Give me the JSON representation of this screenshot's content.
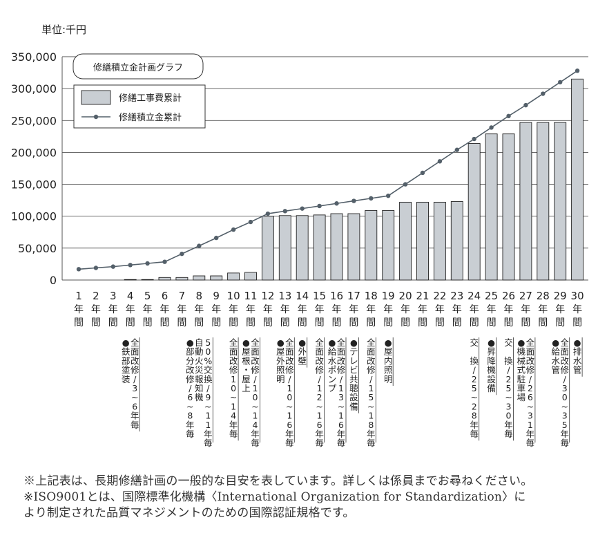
{
  "unit_label": "単位:千円",
  "chart_data": {
    "type": "bar",
    "title": "修繕積立金計画グラフ",
    "ylim": [
      0,
      350000
    ],
    "yticks": [
      "0",
      "50,000",
      "100,000",
      "150,000",
      "200,000",
      "250,000",
      "300,000",
      "350,000"
    ],
    "ytick_values": [
      0,
      50000,
      100000,
      150000,
      200000,
      250000,
      300000,
      350000
    ],
    "grid": true,
    "legend_position": "top-left",
    "categories": [
      "1",
      "2",
      "3",
      "4",
      "5",
      "6",
      "7",
      "8",
      "9",
      "10",
      "11",
      "12",
      "13",
      "14",
      "15",
      "16",
      "17",
      "18",
      "19",
      "20",
      "21",
      "22",
      "23",
      "24",
      "25",
      "26",
      "27",
      "28",
      "29",
      "30"
    ],
    "category_suffix": "年間",
    "series": [
      {
        "name": "修繕工事費累計",
        "kind": "bar",
        "color": "#c9ced3",
        "values": [
          0,
          0,
          0,
          800,
          800,
          4000,
          4000,
          6500,
          6500,
          11000,
          12000,
          100000,
          101000,
          101000,
          102000,
          104000,
          104000,
          109000,
          109000,
          122000,
          122000,
          122000,
          123000,
          214000,
          229000,
          229000,
          247000,
          247000,
          247000,
          315000
        ]
      },
      {
        "name": "修繕積立金累計",
        "kind": "line",
        "color": "#54606a",
        "values": [
          17000,
          19000,
          21000,
          23500,
          26000,
          28500,
          41000,
          53500,
          66000,
          79000,
          91000,
          104000,
          108000,
          112000,
          116000,
          120000,
          124000,
          128000,
          132000,
          150000,
          168000,
          186000,
          204000,
          221000,
          239000,
          257000,
          274000,
          292000,
          310000,
          328000
        ]
      }
    ],
    "annotations": [
      {
        "at": "4",
        "lines": [
          "●鉄部塗装",
          "全面改修/3~6年毎"
        ]
      },
      {
        "at": "8",
        "lines": [
          "●部分改修/6~8年毎",
          "自動火災報知機",
          "50%交換/9~11年毎"
        ]
      },
      {
        "at": "10",
        "lines": [
          "全面改修10~14年毎"
        ]
      },
      {
        "at": "11",
        "lines": [
          "●屋根・屋上",
          "全面改修/10~14年毎"
        ]
      },
      {
        "at": "13",
        "lines": [
          "●屋外照明",
          "全面改修/10~16年毎"
        ]
      },
      {
        "at": "14",
        "lines": [
          "●外壁"
        ]
      },
      {
        "at": "15",
        "lines": [
          "全面改修/12~16年毎"
        ]
      },
      {
        "at": "16",
        "lines": [
          "●給水ポンプ",
          "全面改修/13~16年毎"
        ]
      },
      {
        "at": "17",
        "lines": [
          "●テレビ共聴設備"
        ]
      },
      {
        "at": "18",
        "lines": [
          "全面改修/15~18年毎"
        ]
      },
      {
        "at": "19",
        "lines": [
          "●屋内照明"
        ]
      },
      {
        "at": "24",
        "lines": [
          "交 換/25~28年毎"
        ]
      },
      {
        "at": "25",
        "lines": [
          "●昇降機設備"
        ]
      },
      {
        "at": "26",
        "lines": [
          "交 換/25~30年毎"
        ]
      },
      {
        "at": "27",
        "lines": [
          "●機械式駐車場",
          "全面改修/26~31年毎"
        ]
      },
      {
        "at": "29",
        "lines": [
          "●給水管",
          "全面改修/30~35年毎"
        ]
      },
      {
        "at": "30",
        "lines": [
          "●排水管"
        ]
      }
    ]
  },
  "notes": [
    "※上記表は、長期修繕計画の一般的な目安を表しています。詳しくは係員までお尋ねください。",
    "※ISO9001とは、国際標準化機構〈International Organization for Standardization〉に",
    "より制定された品質マネジメントのための国際認証規格です。"
  ]
}
